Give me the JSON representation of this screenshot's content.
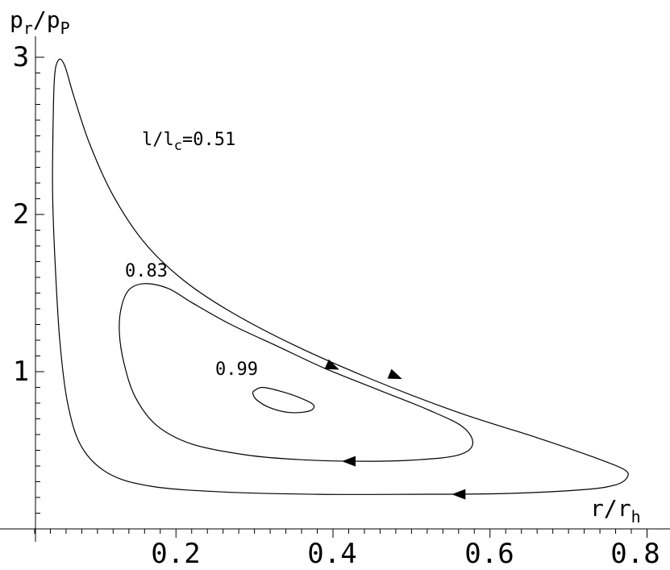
{
  "chart_data": {
    "type": "line",
    "xlabel": {
      "base": "r/r",
      "sub": "h"
    },
    "ylabel": {
      "base": "p",
      "sub1": "r",
      "mid": "/p",
      "sub2": "P"
    },
    "xlim": [
      0.0,
      0.8
    ],
    "ylim": [
      0.0,
      3.0
    ],
    "xticks": [
      "0.2",
      "0.4",
      "0.6",
      "0.8"
    ],
    "yticks": [
      "1",
      "2",
      "3"
    ],
    "grid": false,
    "annotations": {
      "outer_label": {
        "base": "l/l",
        "sub": "c",
        "value": "=0.51"
      },
      "middle_label": "0.83",
      "inner_label": "0.99"
    },
    "series": [
      {
        "closed": true,
        "points": [
          [
            0.043,
            2.4
          ],
          [
            0.045,
            2.85
          ],
          [
            0.05,
            2.98
          ],
          [
            0.058,
            2.95
          ],
          [
            0.07,
            2.75
          ],
          [
            0.09,
            2.45
          ],
          [
            0.12,
            2.12
          ],
          [
            0.16,
            1.82
          ],
          [
            0.21,
            1.58
          ],
          [
            0.27,
            1.38
          ],
          [
            0.35,
            1.17
          ],
          [
            0.45,
            0.95
          ],
          [
            0.56,
            0.74
          ],
          [
            0.66,
            0.58
          ],
          [
            0.73,
            0.46
          ],
          [
            0.77,
            0.38
          ],
          [
            0.775,
            0.33
          ],
          [
            0.76,
            0.28
          ],
          [
            0.72,
            0.25
          ],
          [
            0.62,
            0.225
          ],
          [
            0.5,
            0.22
          ],
          [
            0.38,
            0.22
          ],
          [
            0.26,
            0.235
          ],
          [
            0.17,
            0.27
          ],
          [
            0.115,
            0.35
          ],
          [
            0.08,
            0.52
          ],
          [
            0.062,
            0.8
          ],
          [
            0.052,
            1.2
          ],
          [
            0.046,
            1.7
          ],
          [
            0.043,
            2.1
          ]
        ],
        "arrows": [
          [
            0.48,
            0.97
          ],
          [
            0.56,
            0.22
          ]
        ]
      },
      {
        "closed": true,
        "points": [
          [
            0.13,
            1.4
          ],
          [
            0.14,
            1.52
          ],
          [
            0.16,
            1.56
          ],
          [
            0.19,
            1.53
          ],
          [
            0.22,
            1.44
          ],
          [
            0.27,
            1.3
          ],
          [
            0.33,
            1.16
          ],
          [
            0.39,
            1.02
          ],
          [
            0.46,
            0.88
          ],
          [
            0.52,
            0.76
          ],
          [
            0.565,
            0.65
          ],
          [
            0.578,
            0.54
          ],
          [
            0.56,
            0.47
          ],
          [
            0.51,
            0.44
          ],
          [
            0.44,
            0.43
          ],
          [
            0.36,
            0.44
          ],
          [
            0.29,
            0.47
          ],
          [
            0.22,
            0.54
          ],
          [
            0.175,
            0.66
          ],
          [
            0.148,
            0.84
          ],
          [
            0.134,
            1.05
          ],
          [
            0.128,
            1.24
          ]
        ],
        "arrows": [
          [
            0.4,
            1.03
          ],
          [
            0.42,
            0.43
          ]
        ]
      },
      {
        "closed": true,
        "points": [
          [
            0.3,
            0.88
          ],
          [
            0.31,
            0.9
          ],
          [
            0.33,
            0.88
          ],
          [
            0.355,
            0.84
          ],
          [
            0.375,
            0.79
          ],
          [
            0.37,
            0.75
          ],
          [
            0.345,
            0.74
          ],
          [
            0.32,
            0.77
          ],
          [
            0.303,
            0.82
          ],
          [
            0.298,
            0.86
          ]
        ],
        "arrows": []
      }
    ]
  }
}
